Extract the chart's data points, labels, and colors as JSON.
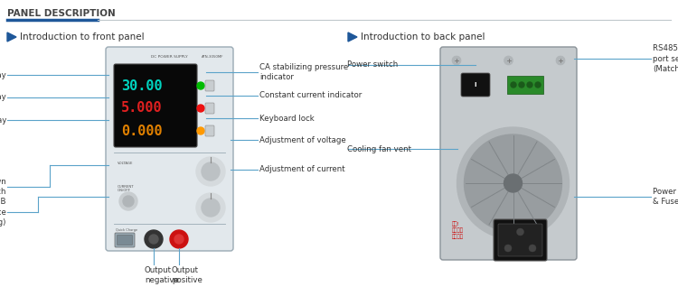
{
  "bg_color": "#ffffff",
  "header_text": "PANEL DESCRIPTION",
  "header_color": "#444444",
  "header_line_left_color": "#1e5799",
  "header_line_right_color": "#c0c8cc",
  "section_arrow_color": "#1e5799",
  "section_text_color": "#333333",
  "line_color": "#5ba3c9",
  "label_fontsize": 6.2,
  "label_color": "#333333",
  "front_title": "Introduction to front panel",
  "back_title": "Introduction to back panel"
}
